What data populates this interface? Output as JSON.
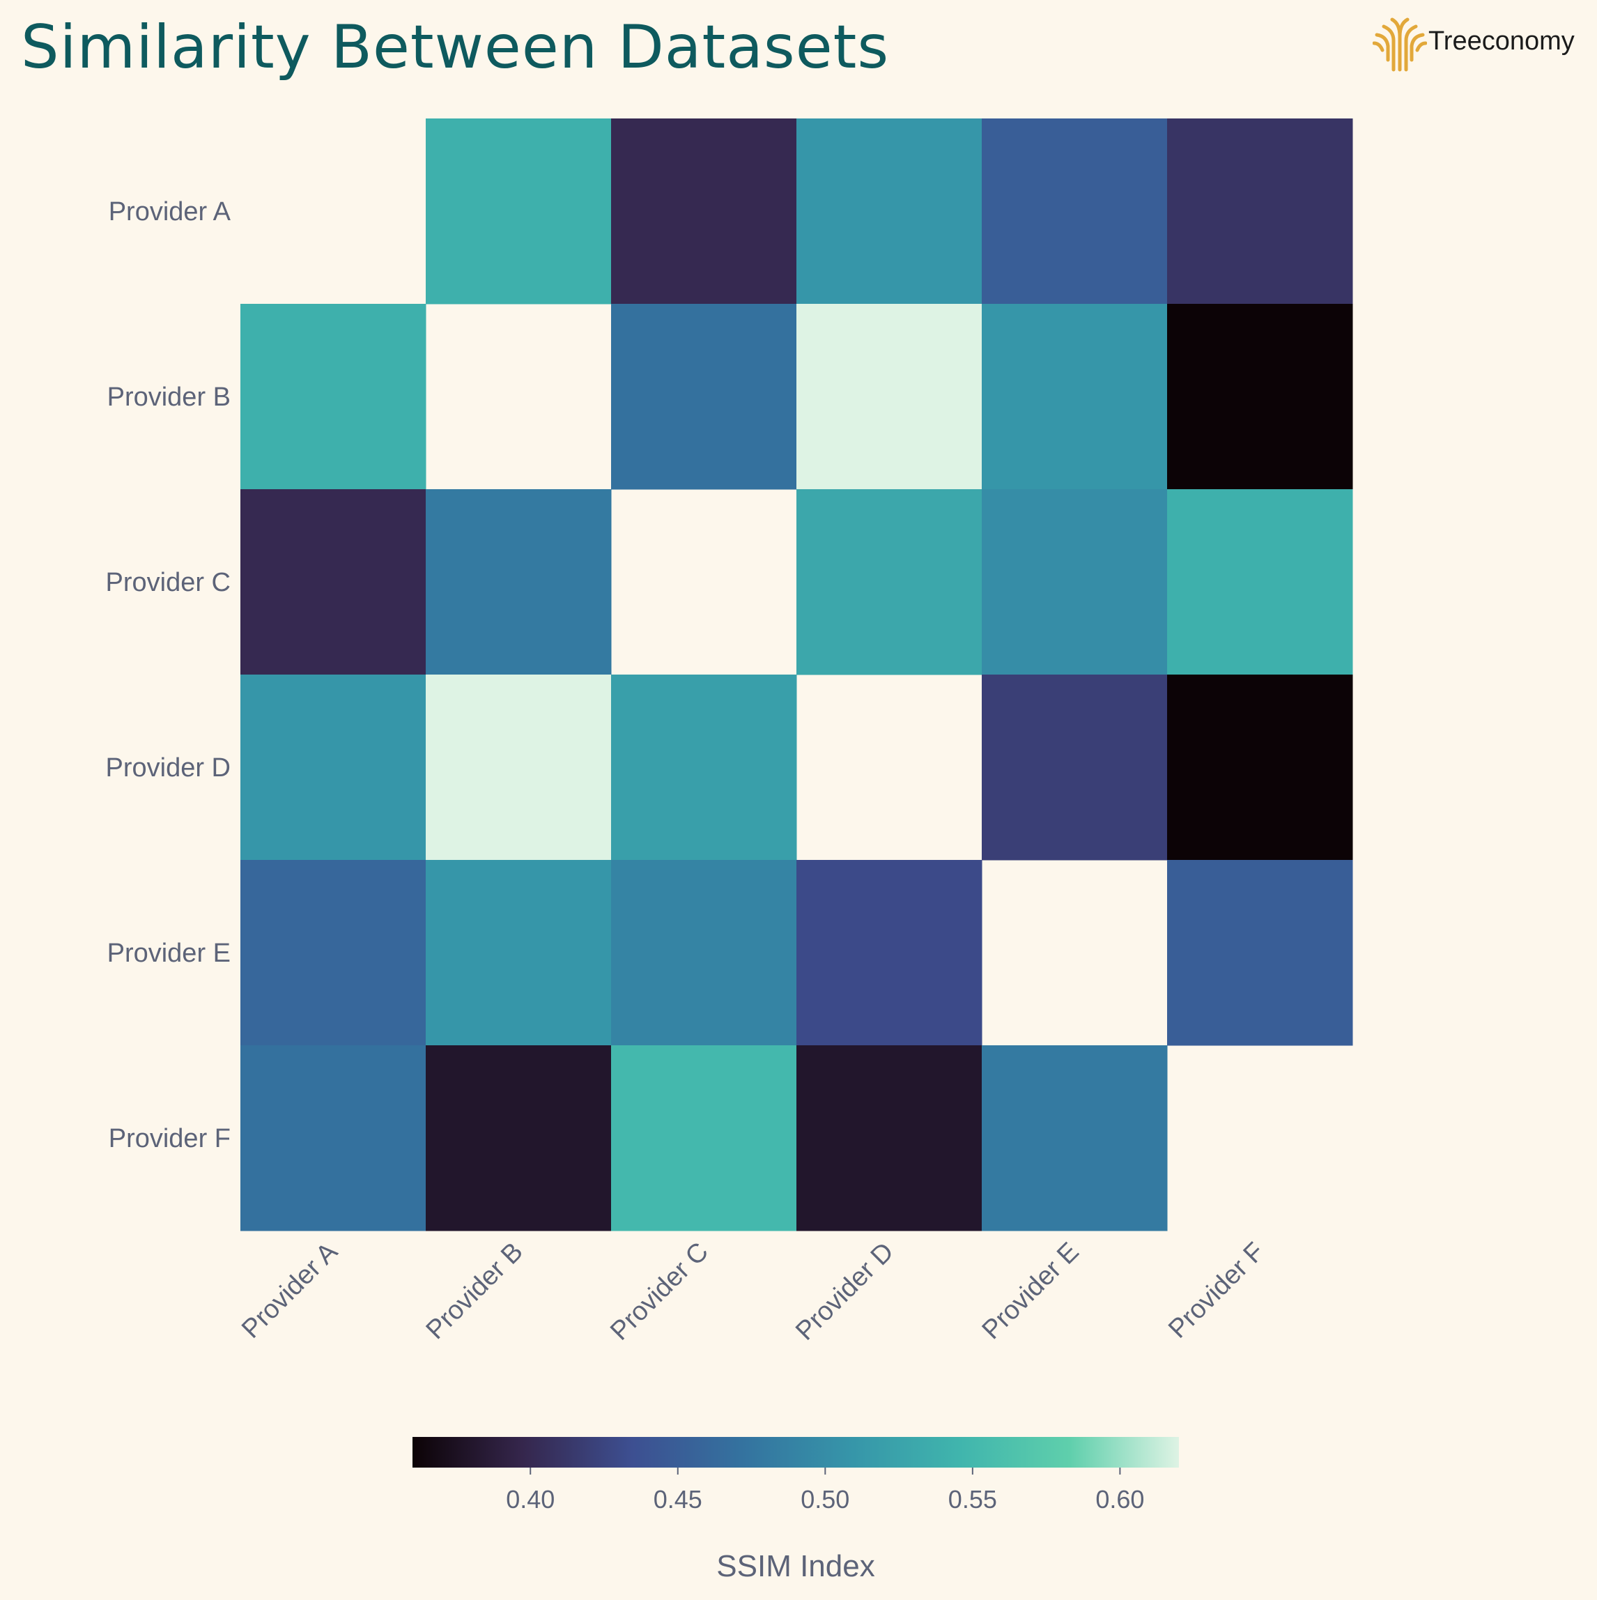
{
  "title": "Similarity Between Datasets",
  "logo": {
    "text": "Treeconomy",
    "color": "#e2a83a"
  },
  "colors": {
    "background": "#fdf7ec",
    "title": "#0e5a5e",
    "tick_text": "#5c6378",
    "colormap_stops": [
      "#0c0306",
      "#35264c",
      "#3d4f91",
      "#34729f",
      "#3695a9",
      "#40b5ad",
      "#5fcfac",
      "#def3e4"
    ]
  },
  "chart_data": {
    "type": "heatmap",
    "title": "Similarity Between Datasets",
    "rows": [
      "Provider A",
      "Provider B",
      "Provider C",
      "Provider D",
      "Provider E",
      "Provider F"
    ],
    "columns": [
      "Provider A",
      "Provider B",
      "Provider C",
      "Provider D",
      "Provider E",
      "Provider F"
    ],
    "values": [
      [
        null,
        0.54,
        0.4,
        0.51,
        0.45,
        0.41
      ],
      [
        0.54,
        null,
        0.47,
        0.62,
        0.51,
        0.36
      ],
      [
        0.4,
        0.48,
        null,
        0.53,
        0.5,
        0.54
      ],
      [
        0.51,
        0.62,
        0.52,
        null,
        0.42,
        0.36
      ],
      [
        0.46,
        0.51,
        0.49,
        0.43,
        null,
        0.45
      ],
      [
        0.47,
        0.38,
        0.55,
        0.38,
        0.48,
        null
      ]
    ],
    "masked": "diagonal",
    "colorbar": {
      "label": "SSIM Index",
      "range": [
        0.36,
        0.62
      ],
      "ticks": [
        0.4,
        0.45,
        0.5,
        0.55,
        0.6
      ],
      "tick_labels": [
        "0.40",
        "0.45",
        "0.50",
        "0.55",
        "0.60"
      ],
      "orientation": "horizontal",
      "position": "bottom"
    }
  }
}
